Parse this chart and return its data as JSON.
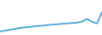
{
  "x": [
    0,
    1,
    2,
    3,
    4,
    5,
    6,
    7,
    8,
    9,
    10,
    11,
    12,
    13,
    14,
    15,
    16,
    17,
    18,
    19,
    20
  ],
  "y": [
    2,
    2.5,
    3.0,
    3.5,
    4.0,
    4.3,
    4.6,
    5.0,
    5.2,
    5.5,
    5.8,
    6.0,
    6.3,
    6.5,
    6.8,
    7.0,
    7.5,
    9.0,
    7.5,
    6.5,
    13.0
  ],
  "line_color": "#4da6d9",
  "background_color": "#ffffff",
  "linewidth": 1.3
}
